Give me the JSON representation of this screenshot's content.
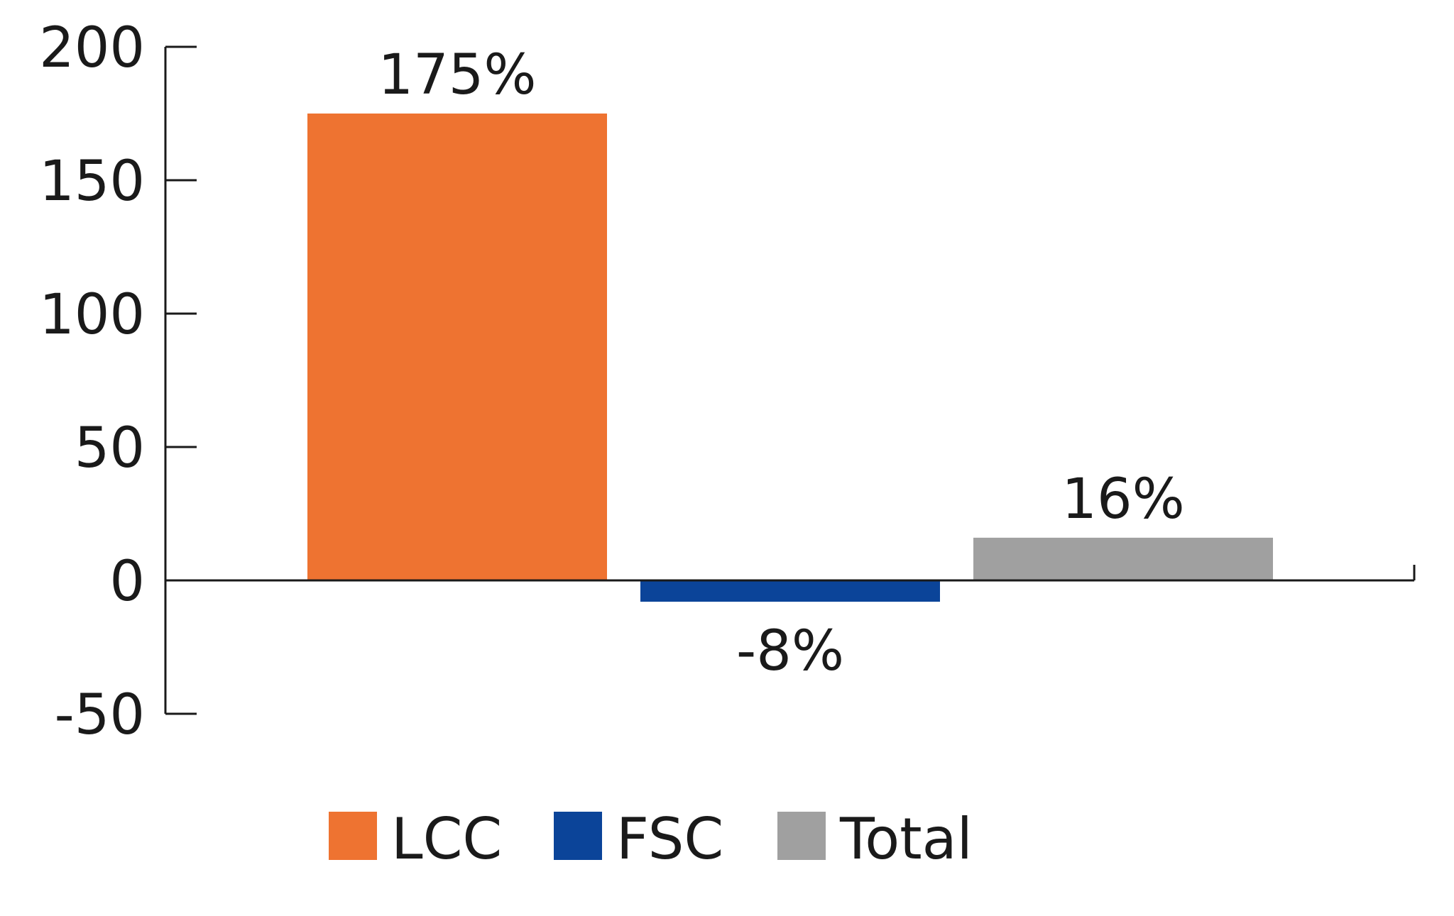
{
  "chart_data": {
    "type": "bar",
    "categories": [
      "LCC",
      "FSC",
      "Total"
    ],
    "values": [
      175,
      -8,
      16
    ],
    "data_labels": [
      "175%",
      "-8%",
      "16%"
    ],
    "colors": [
      "#ee7331",
      "#0b4499",
      "#a0a0a0"
    ],
    "ylim": [
      -50,
      200
    ],
    "yticks": [
      200,
      150,
      100,
      50,
      0,
      -50
    ],
    "ytick_labels": [
      "200",
      "150",
      "100",
      "50",
      "0",
      "-50"
    ],
    "title": "",
    "xlabel": "",
    "ylabel": "",
    "grid": false,
    "legend": {
      "position": "bottom",
      "entries": [
        {
          "label": "LCC",
          "color": "#ee7331"
        },
        {
          "label": "FSC",
          "color": "#0b4499"
        },
        {
          "label": "Total",
          "color": "#a0a0a0"
        }
      ]
    }
  }
}
